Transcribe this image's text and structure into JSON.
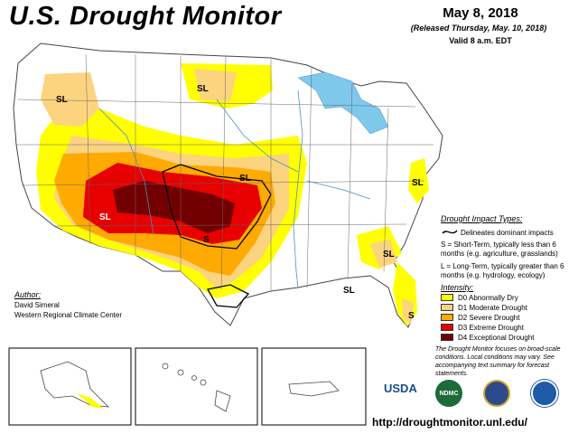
{
  "title": "U.S. Drought Monitor",
  "date": "May 8, 2018",
  "released": "(Released Thursday, May. 10, 2018)",
  "valid": "Valid 8 a.m. EDT",
  "map_labels": {
    "sl": "SL",
    "s": "S"
  },
  "impact": {
    "title": "Drought Impact Types:",
    "line": "Delineates dominant impacts",
    "s_text": "S = Short-Term, typically less than 6 months (e.g. agriculture, grasslands)",
    "l_text": "L = Long-Term, typically greater than 6 months (e.g. hydrology, ecology)"
  },
  "intensity": {
    "title": "Intensity:",
    "items": [
      {
        "label": "D0 Abnormally Dry",
        "color": "#ffff00"
      },
      {
        "label": "D1 Moderate Drought",
        "color": "#fcd37f"
      },
      {
        "label": "D2 Severe Drought",
        "color": "#ffaa00"
      },
      {
        "label": "D3 Extreme Drought",
        "color": "#e60000"
      },
      {
        "label": "D4 Exceptional Drought",
        "color": "#730000"
      }
    ]
  },
  "note": "The Drought Monitor focuses on broad-scale conditions. Local conditions may vary. See accompanying text summary for forecast statements.",
  "author": {
    "heading": "Author:",
    "name": "David Simeral",
    "org": "Western Regional Climate Center"
  },
  "logos": {
    "usda": "USDA",
    "ndmc": "NDMC"
  },
  "url": "http://droughtmonitor.unl.edu/"
}
